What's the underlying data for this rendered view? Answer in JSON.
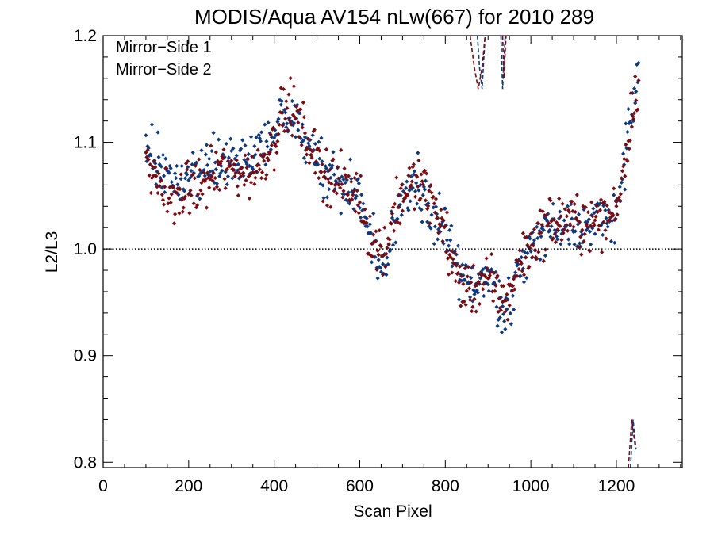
{
  "chart_data": {
    "type": "scatter",
    "title": "MODIS/Aqua AV154 nLw(667) for 2010 289",
    "xlabel": "Scan Pixel",
    "ylabel": "L2/L3",
    "xlim": [
      0,
      1354
    ],
    "ylim": [
      0.795,
      1.2
    ],
    "x_major_ticks": [
      0,
      200,
      400,
      600,
      800,
      1000,
      1200
    ],
    "x_tick_labels": [
      "0",
      "200",
      "400",
      "600",
      "800",
      "1000",
      "1200"
    ],
    "y_major_ticks": [
      0.8,
      0.9,
      1.0,
      1.1,
      1.2
    ],
    "y_tick_labels": [
      "0.8",
      "0.9",
      "1.0",
      "1.1",
      "1.2"
    ],
    "reference_line": {
      "y": 1.0,
      "style": "dotted"
    },
    "legend_position": "top-left",
    "grid": false,
    "series": [
      {
        "name": "Mirror−Side 1",
        "color": "#0f3a80",
        "marker": "diamond",
        "trend": [
          [
            100,
            1.1
          ],
          [
            120,
            1.085
          ],
          [
            140,
            1.075
          ],
          [
            160,
            1.07
          ],
          [
            180,
            1.062
          ],
          [
            200,
            1.065
          ],
          [
            220,
            1.07
          ],
          [
            240,
            1.072
          ],
          [
            260,
            1.08
          ],
          [
            280,
            1.085
          ],
          [
            300,
            1.082
          ],
          [
            320,
            1.085
          ],
          [
            340,
            1.08
          ],
          [
            360,
            1.085
          ],
          [
            380,
            1.095
          ],
          [
            400,
            1.11
          ],
          [
            420,
            1.125
          ],
          [
            440,
            1.122
          ],
          [
            460,
            1.115
          ],
          [
            480,
            1.1
          ],
          [
            500,
            1.085
          ],
          [
            520,
            1.075
          ],
          [
            540,
            1.068
          ],
          [
            560,
            1.06
          ],
          [
            580,
            1.055
          ],
          [
            600,
            1.048
          ],
          [
            620,
            1.015
          ],
          [
            640,
            0.995
          ],
          [
            660,
            0.985
          ],
          [
            680,
            1.03
          ],
          [
            700,
            1.048
          ],
          [
            720,
            1.055
          ],
          [
            740,
            1.06
          ],
          [
            760,
            1.045
          ],
          [
            780,
            1.03
          ],
          [
            800,
            1.015
          ],
          [
            820,
            0.985
          ],
          [
            840,
            0.97
          ],
          [
            860,
            0.968
          ],
          [
            880,
            0.975
          ],
          [
            900,
            0.972
          ],
          [
            920,
            0.96
          ],
          [
            940,
            0.94
          ],
          [
            960,
            0.965
          ],
          [
            980,
            0.99
          ],
          [
            1000,
            1.0
          ],
          [
            1020,
            1.015
          ],
          [
            1040,
            1.02
          ],
          [
            1060,
            1.02
          ],
          [
            1080,
            1.025
          ],
          [
            1100,
            1.025
          ],
          [
            1120,
            1.022
          ],
          [
            1140,
            1.02
          ],
          [
            1160,
            1.025
          ],
          [
            1180,
            1.025
          ],
          [
            1200,
            1.04
          ],
          [
            1220,
            1.085
          ],
          [
            1240,
            1.14
          ],
          [
            1252,
            1.165
          ]
        ],
        "spread": 0.022,
        "edge_curve": [
          [
            875,
            1.2
          ],
          [
            880,
            1.17
          ],
          [
            886,
            1.15
          ],
          [
            893,
            1.2
          ],
          [
            930,
            1.2
          ],
          [
            934,
            1.15
          ],
          [
            940,
            1.2
          ],
          [
            1233,
            0.795
          ],
          [
            1239,
            0.84
          ],
          [
            1246,
            0.812
          ]
        ]
      },
      {
        "name": "Mirror−Side 2",
        "color": "#7a0c12",
        "marker": "diamond",
        "trend": [
          [
            100,
            1.075
          ],
          [
            120,
            1.065
          ],
          [
            140,
            1.055
          ],
          [
            160,
            1.05
          ],
          [
            180,
            1.052
          ],
          [
            200,
            1.055
          ],
          [
            220,
            1.06
          ],
          [
            240,
            1.062
          ],
          [
            260,
            1.07
          ],
          [
            280,
            1.075
          ],
          [
            300,
            1.072
          ],
          [
            320,
            1.075
          ],
          [
            340,
            1.07
          ],
          [
            360,
            1.075
          ],
          [
            380,
            1.088
          ],
          [
            400,
            1.105
          ],
          [
            420,
            1.128
          ],
          [
            440,
            1.13
          ],
          [
            460,
            1.118
          ],
          [
            480,
            1.1
          ],
          [
            500,
            1.082
          ],
          [
            520,
            1.072
          ],
          [
            540,
            1.065
          ],
          [
            560,
            1.06
          ],
          [
            580,
            1.055
          ],
          [
            600,
            1.05
          ],
          [
            620,
            1.015
          ],
          [
            640,
            1.0
          ],
          [
            660,
            1.0
          ],
          [
            680,
            1.035
          ],
          [
            700,
            1.05
          ],
          [
            720,
            1.06
          ],
          [
            740,
            1.062
          ],
          [
            760,
            1.05
          ],
          [
            780,
            1.035
          ],
          [
            800,
            1.015
          ],
          [
            820,
            0.98
          ],
          [
            840,
            0.965
          ],
          [
            860,
            0.96
          ],
          [
            880,
            0.97
          ],
          [
            900,
            0.97
          ],
          [
            920,
            0.96
          ],
          [
            940,
            0.95
          ],
          [
            960,
            0.97
          ],
          [
            980,
            0.995
          ],
          [
            1000,
            1.0
          ],
          [
            1020,
            1.015
          ],
          [
            1040,
            1.025
          ],
          [
            1060,
            1.022
          ],
          [
            1080,
            1.028
          ],
          [
            1100,
            1.028
          ],
          [
            1120,
            1.025
          ],
          [
            1140,
            1.022
          ],
          [
            1160,
            1.028
          ],
          [
            1180,
            1.028
          ],
          [
            1200,
            1.04
          ],
          [
            1220,
            1.085
          ],
          [
            1240,
            1.135
          ],
          [
            1252,
            1.16
          ]
        ],
        "spread": 0.022,
        "edge_curve": [
          [
            858,
            1.2
          ],
          [
            868,
            1.17
          ],
          [
            877,
            1.15
          ],
          [
            886,
            1.17
          ],
          [
            893,
            1.2
          ],
          [
            934,
            1.2
          ],
          [
            937,
            1.16
          ],
          [
            942,
            1.2
          ],
          [
            1228,
            0.795
          ],
          [
            1236,
            0.84
          ],
          [
            1244,
            0.815
          ]
        ]
      }
    ]
  }
}
